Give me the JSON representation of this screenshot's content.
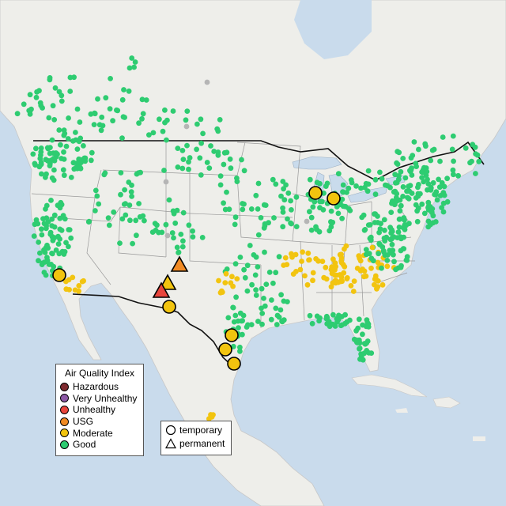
{
  "legend": {
    "title": "Air Quality Index",
    "items": [
      {
        "label": "Hazardous",
        "color": "#7e2a2f"
      },
      {
        "label": "Very Unhealthy",
        "color": "#8c59a6"
      },
      {
        "label": "Unhealthy",
        "color": "#e8453c"
      },
      {
        "label": "USG",
        "color": "#f08a24"
      },
      {
        "label": "Moderate",
        "color": "#f2c40f"
      },
      {
        "label": "Good",
        "color": "#2ecc71"
      }
    ],
    "types": [
      {
        "label": "temporary",
        "icon": "circle-icon"
      },
      {
        "label": "permanent",
        "icon": "triangle-icon"
      }
    ]
  },
  "colors": {
    "water": "#c9dbec",
    "land": "#eeeeea",
    "good": "#2ecc71",
    "moderate": "#f2c40f",
    "nodata": "#b5b5b5"
  }
}
